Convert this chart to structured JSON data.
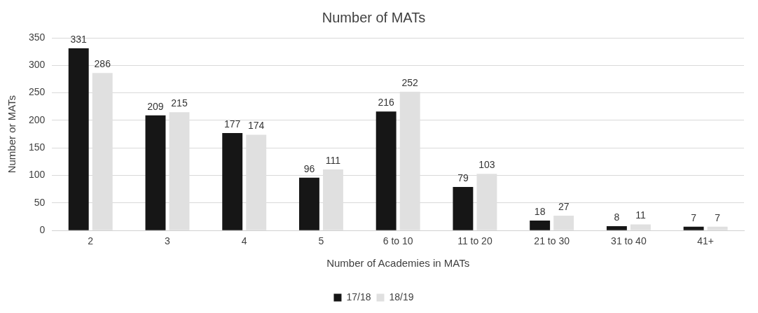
{
  "chart_data": {
    "type": "bar",
    "title": "Number of MATs",
    "xlabel": "Number of Academies in MATs",
    "ylabel": "Number or MATs",
    "categories": [
      "2",
      "3",
      "4",
      "5",
      "6 to 10",
      "11 to 20",
      "21 to 30",
      "31 to 40",
      "41+"
    ],
    "series": [
      {
        "name": "17/18",
        "color": "#161616",
        "values": [
          331,
          209,
          177,
          96,
          216,
          79,
          18,
          8,
          7
        ]
      },
      {
        "name": "18/19",
        "color": "#e0e0e0",
        "values": [
          286,
          215,
          174,
          111,
          252,
          103,
          27,
          11,
          7
        ]
      }
    ],
    "ylim": [
      0,
      350
    ],
    "yticks": [
      0,
      50,
      100,
      150,
      200,
      250,
      300,
      350
    ],
    "grid": "y",
    "legend": "bottom",
    "data_labels": true
  }
}
